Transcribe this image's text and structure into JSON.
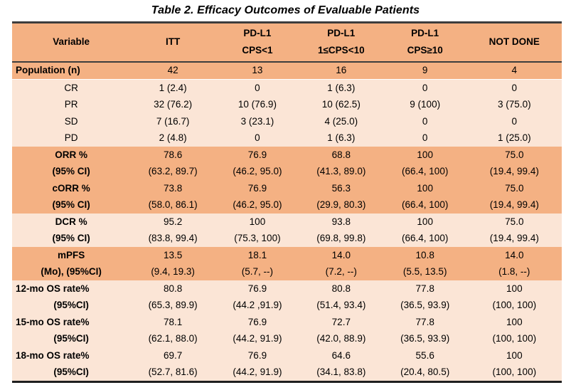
{
  "title": "Table 2. Efficacy Outcomes of Evaluable Patients",
  "colors": {
    "header_bg": "#F4B183",
    "band_dark": "#F4B183",
    "band_light": "#FBE5D6",
    "border": "#3d3d3d",
    "text": "#000000"
  },
  "table": {
    "columns": [
      {
        "name": "variable",
        "line1": "Variable",
        "line2": ""
      },
      {
        "name": "itt",
        "line1": "ITT",
        "line2": ""
      },
      {
        "name": "pdl1-cps-lt1",
        "line1": "PD-L1",
        "line2": "CPS<1"
      },
      {
        "name": "pdl1-cps-1-10",
        "line1": "PD-L1",
        "line2": "1≤CPS<10"
      },
      {
        "name": "pdl1-cps-ge10",
        "line1": "PD-L1",
        "line2": "CPS≥10"
      },
      {
        "name": "not-done",
        "line1": "NOT DONE",
        "line2": ""
      }
    ],
    "rows": [
      {
        "label": "Population (n)",
        "values": [
          "42",
          "13",
          "16",
          "9",
          "4"
        ],
        "band": "dark",
        "bold": true,
        "align": "left",
        "sep": true
      },
      {
        "label": "CR",
        "values": [
          "1 (2.4)",
          "0",
          "1 (6.3)",
          "0",
          "0"
        ],
        "band": "light",
        "bold": false,
        "align": "center",
        "sep": false
      },
      {
        "label": "PR",
        "values": [
          "32 (76.2)",
          "10 (76.9)",
          "10 (62.5)",
          "9 (100)",
          "3 (75.0)"
        ],
        "band": "light",
        "bold": false,
        "align": "center",
        "sep": false
      },
      {
        "label": "SD",
        "values": [
          "7 (16.7)",
          "3 (23.1)",
          "4 (25.0)",
          "0",
          "0"
        ],
        "band": "light",
        "bold": false,
        "align": "center",
        "sep": false
      },
      {
        "label": "PD",
        "values": [
          "2 (4.8)",
          "0",
          "1 (6.3)",
          "0",
          "1 (25.0)"
        ],
        "band": "light",
        "bold": false,
        "align": "center",
        "sep": false
      },
      {
        "label": "ORR %",
        "values": [
          "78.6",
          "76.9",
          "68.8",
          "100",
          "75.0"
        ],
        "band": "dark",
        "bold": true,
        "align": "center",
        "sep": false
      },
      {
        "label": "(95% CI)",
        "values": [
          "(63.2, 89.7)",
          "(46.2, 95.0)",
          "(41.3, 89.0)",
          "(66.4, 100)",
          "(19.4, 99.4)"
        ],
        "band": "dark",
        "bold": true,
        "align": "center",
        "sep": false
      },
      {
        "label": "cORR %",
        "values": [
          "73.8",
          "76.9",
          "56.3",
          "100",
          "75.0"
        ],
        "band": "dark",
        "bold": true,
        "align": "center",
        "sep": false
      },
      {
        "label": "(95% CI)",
        "values": [
          "(58.0, 86.1)",
          "(46.2, 95.0)",
          "(29.9, 80.3)",
          "(66.4, 100)",
          "(19.4, 99.4)"
        ],
        "band": "dark",
        "bold": true,
        "align": "center",
        "sep": false
      },
      {
        "label": "DCR %",
        "values": [
          "95.2",
          "100",
          "93.8",
          "100",
          "75.0"
        ],
        "band": "light",
        "bold": true,
        "align": "center",
        "sep": false
      },
      {
        "label": "(95% CI)",
        "values": [
          "(83.8, 99.4)",
          "(75.3, 100)",
          "(69.8, 99.8)",
          "(66.4, 100)",
          "(19.4, 99.4)"
        ],
        "band": "light",
        "bold": true,
        "align": "center",
        "sep": false
      },
      {
        "label": "mPFS",
        "values": [
          "13.5",
          "18.1",
          "14.0",
          "10.8",
          "14.0"
        ],
        "band": "dark",
        "bold": true,
        "align": "center",
        "sep": false
      },
      {
        "label": "(Mo), (95%CI)",
        "values": [
          "(9.4, 19.3)",
          "(5.7, --)",
          "(7.2, --)",
          "(5.5, 13.5)",
          "(1.8, --)"
        ],
        "band": "dark",
        "bold": true,
        "align": "center",
        "sep": false
      },
      {
        "label": "12-mo OS rate%",
        "values": [
          "80.8",
          "76.9",
          "80.8",
          "77.8",
          "100"
        ],
        "band": "light",
        "bold": true,
        "align": "left",
        "sep": false
      },
      {
        "label": "(95%CI)",
        "values": [
          "(65.3, 89.9)",
          "(44.2 ,91.9)",
          "(51.4, 93.4)",
          "(36.5, 93.9)",
          "(100, 100)"
        ],
        "band": "light",
        "bold": true,
        "align": "center",
        "sep": false
      },
      {
        "label": "15-mo OS rate%",
        "values": [
          "78.1",
          "76.9",
          "72.7",
          "77.8",
          "100"
        ],
        "band": "light",
        "bold": true,
        "align": "left",
        "sep": false
      },
      {
        "label": "(95%CI)",
        "values": [
          "(62.1, 88.0)",
          "(44.2, 91.9)",
          "(42.0, 88.9)",
          "(36.5, 93.9)",
          "(100, 100)"
        ],
        "band": "light",
        "bold": true,
        "align": "center",
        "sep": false
      },
      {
        "label": "18-mo OS rate%",
        "values": [
          "69.7",
          "76.9",
          "64.6",
          "55.6",
          "100"
        ],
        "band": "light",
        "bold": true,
        "align": "left",
        "sep": false
      },
      {
        "label": "(95%CI)",
        "values": [
          "(52.7, 81.6)",
          "(44.2, 91.9)",
          "(34.1, 83.8)",
          "(20.4, 80.5)",
          "(100, 100)"
        ],
        "band": "light",
        "bold": true,
        "align": "center",
        "sep": false
      }
    ]
  }
}
